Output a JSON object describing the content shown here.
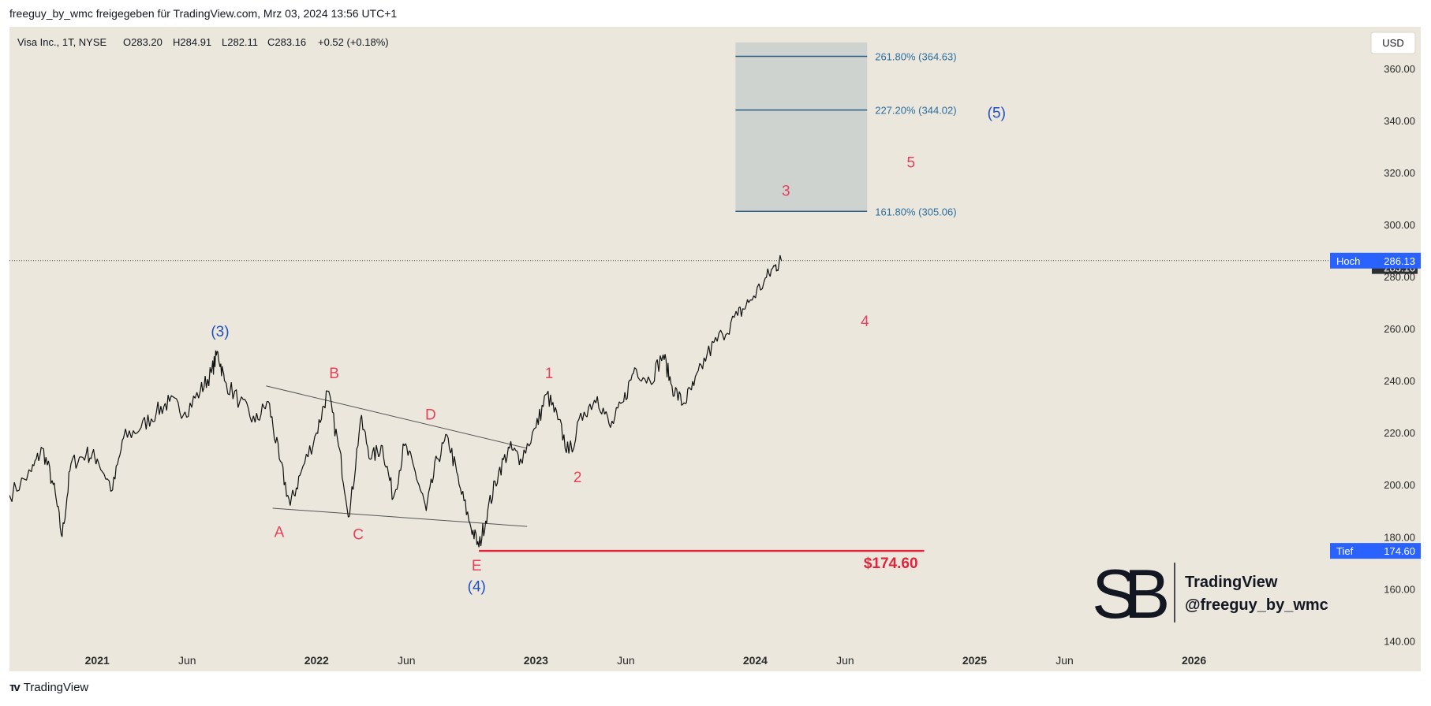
{
  "header": {
    "attribution": "freeguy_by_wmc freigegeben für TradingView.com, Mrz 03, 2024 13:56 UTC+1"
  },
  "footer": {
    "brand": "TradingView"
  },
  "currency": "USD",
  "chart_data": {
    "type": "line",
    "title": "Visa Inc., 1T, NYSE",
    "ohlc": {
      "open": "O283.20",
      "high": "H284.91",
      "low": "L282.11",
      "close": "C283.16",
      "change": "+0.52 (+0.18%)"
    },
    "ylim": [
      138,
      376
    ],
    "xlim": [
      2020.6,
      2026.8
    ],
    "y_ticks": [
      "360.00",
      "340.00",
      "320.00",
      "300.00",
      "280.00",
      "260.00",
      "240.00",
      "220.00",
      "200.00",
      "180.00",
      "160.00",
      "140.00"
    ],
    "x_ticks": [
      {
        "label": "2021",
        "x": 2021.0,
        "bold": true
      },
      {
        "label": "Jun",
        "x": 2021.41,
        "bold": false
      },
      {
        "label": "2022",
        "x": 2022.0,
        "bold": true
      },
      {
        "label": "Jun",
        "x": 2022.41,
        "bold": false
      },
      {
        "label": "2023",
        "x": 2023.0,
        "bold": true
      },
      {
        "label": "Jun",
        "x": 2023.41,
        "bold": false
      },
      {
        "label": "2024",
        "x": 2024.0,
        "bold": true
      },
      {
        "label": "Jun",
        "x": 2024.41,
        "bold": false
      },
      {
        "label": "2025",
        "x": 2025.0,
        "bold": true
      },
      {
        "label": "Jun",
        "x": 2025.41,
        "bold": false
      },
      {
        "label": "2026",
        "x": 2026.0,
        "bold": true
      }
    ],
    "price_path": [
      [
        2020.6,
        196
      ],
      [
        2020.7,
        205
      ],
      [
        2020.75,
        214
      ],
      [
        2020.8,
        200
      ],
      [
        2020.84,
        180
      ],
      [
        2020.88,
        208
      ],
      [
        2020.95,
        212
      ],
      [
        2021.0,
        210
      ],
      [
        2021.07,
        198
      ],
      [
        2021.12,
        218
      ],
      [
        2021.2,
        222
      ],
      [
        2021.27,
        228
      ],
      [
        2021.33,
        232
      ],
      [
        2021.4,
        228
      ],
      [
        2021.47,
        236
      ],
      [
        2021.52,
        243
      ],
      [
        2021.55,
        251
      ],
      [
        2021.58,
        240
      ],
      [
        2021.65,
        232
      ],
      [
        2021.72,
        224
      ],
      [
        2021.78,
        232
      ],
      [
        2021.83,
        210
      ],
      [
        2021.88,
        192
      ],
      [
        2021.93,
        205
      ],
      [
        2022.0,
        220
      ],
      [
        2022.05,
        236
      ],
      [
        2022.1,
        215
      ],
      [
        2022.15,
        188
      ],
      [
        2022.2,
        225
      ],
      [
        2022.25,
        210
      ],
      [
        2022.3,
        215
      ],
      [
        2022.35,
        195
      ],
      [
        2022.4,
        215
      ],
      [
        2022.45,
        205
      ],
      [
        2022.5,
        190
      ],
      [
        2022.55,
        210
      ],
      [
        2022.6,
        218
      ],
      [
        2022.65,
        200
      ],
      [
        2022.7,
        185
      ],
      [
        2022.74,
        176
      ],
      [
        2022.78,
        190
      ],
      [
        2022.83,
        205
      ],
      [
        2022.88,
        214
      ],
      [
        2022.93,
        210
      ],
      [
        2023.0,
        222
      ],
      [
        2023.05,
        235
      ],
      [
        2023.1,
        225
      ],
      [
        2023.15,
        212
      ],
      [
        2023.22,
        228
      ],
      [
        2023.28,
        234
      ],
      [
        2023.34,
        222
      ],
      [
        2023.4,
        232
      ],
      [
        2023.45,
        245
      ],
      [
        2023.52,
        240
      ],
      [
        2023.58,
        250
      ],
      [
        2023.62,
        238
      ],
      [
        2023.67,
        231
      ],
      [
        2023.72,
        238
      ],
      [
        2023.78,
        250
      ],
      [
        2023.85,
        258
      ],
      [
        2023.92,
        265
      ],
      [
        2023.97,
        270
      ],
      [
        2024.04,
        278
      ],
      [
        2024.09,
        284
      ],
      [
        2024.12,
        286
      ]
    ],
    "last_price": {
      "value": 283.16,
      "label": "283.16"
    },
    "hoch": {
      "label": "Hoch",
      "value": 286.13,
      "value_label": "286.13"
    },
    "tief": {
      "label": "Tief",
      "value": 174.6,
      "value_label": "174.60"
    },
    "support": {
      "label": "$174.60",
      "value": 174.6,
      "x1": 2022.74,
      "x2": 2024.77
    },
    "fib_zone": {
      "x1": 2023.91,
      "x2": 2024.51,
      "top": 370,
      "bottom": 305.06,
      "levels": [
        {
          "value": 364.63,
          "label": "261.80% (364.63)"
        },
        {
          "value": 344.02,
          "label": "227.20% (344.02)"
        },
        {
          "value": 305.06,
          "label": "161.80% (305.06)"
        }
      ]
    },
    "trendlines": [
      {
        "x1": 2021.77,
        "y1": 238,
        "x2": 2022.96,
        "y2": 214
      },
      {
        "x1": 2021.8,
        "y1": 191,
        "x2": 2022.96,
        "y2": 184
      }
    ],
    "wave_labels": [
      {
        "text": "(3)",
        "x": 2021.56,
        "y": 257,
        "color": "#1e4fc4"
      },
      {
        "text": "B",
        "x": 2022.08,
        "y": 241,
        "color": "#e8405a"
      },
      {
        "text": "D",
        "x": 2022.52,
        "y": 225,
        "color": "#e8405a"
      },
      {
        "text": "A",
        "x": 2021.83,
        "y": 180,
        "color": "#e8405a"
      },
      {
        "text": "C",
        "x": 2022.19,
        "y": 179,
        "color": "#e8405a"
      },
      {
        "text": "E",
        "x": 2022.73,
        "y": 167,
        "color": "#e8405a"
      },
      {
        "text": "(4)",
        "x": 2022.73,
        "y": 159,
        "color": "#1e4fc4"
      },
      {
        "text": "1",
        "x": 2023.06,
        "y": 241,
        "color": "#e8405a"
      },
      {
        "text": "2",
        "x": 2023.19,
        "y": 201,
        "color": "#e8405a"
      },
      {
        "text": "3",
        "x": 2024.14,
        "y": 311,
        "color": "#e8405a"
      },
      {
        "text": "4",
        "x": 2024.5,
        "y": 261,
        "color": "#e8405a"
      },
      {
        "text": "5",
        "x": 2024.71,
        "y": 322,
        "color": "#e8405a"
      },
      {
        "text": "(5)",
        "x": 2025.1,
        "y": 341,
        "color": "#1e4fc4"
      }
    ],
    "watermark": {
      "line1": "TradingView",
      "line2": "@freeguy_by_wmc"
    }
  }
}
